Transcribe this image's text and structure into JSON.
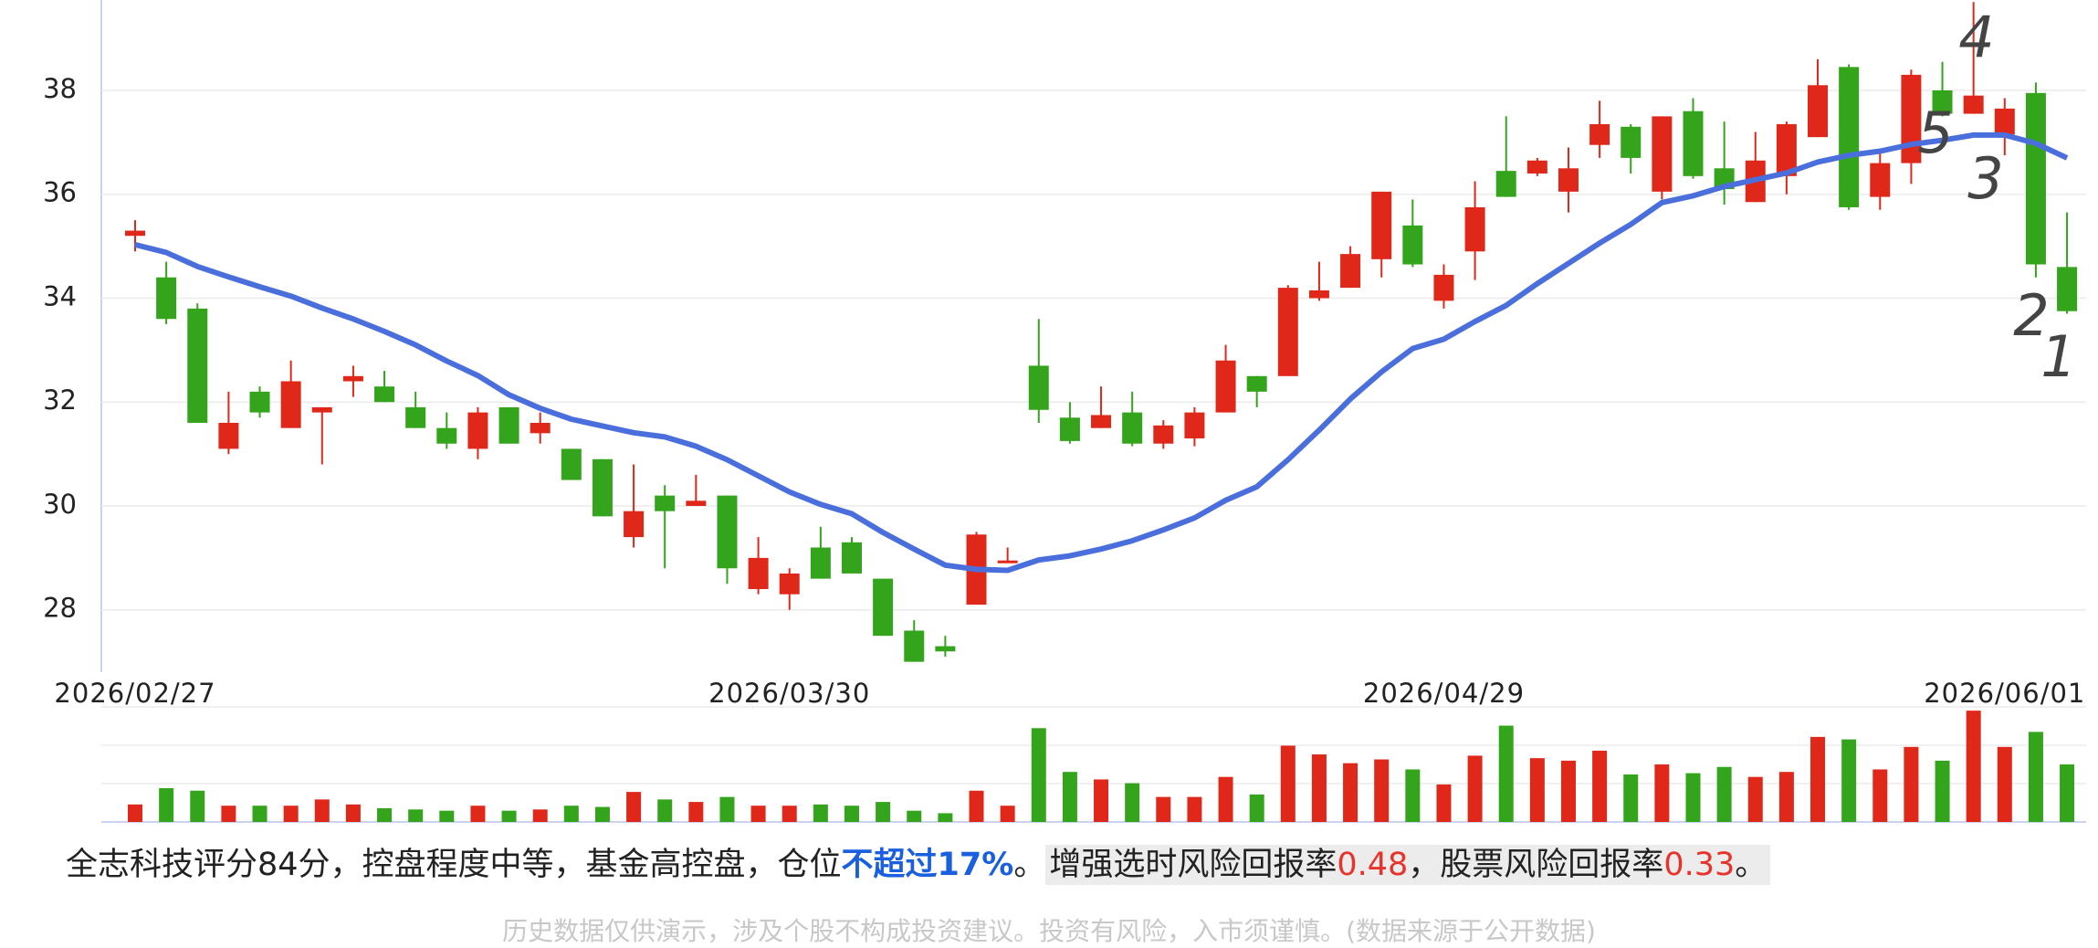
{
  "chart_data": {
    "type": "candlestick",
    "categories": [
      "2026/02/27",
      null,
      null,
      null,
      null,
      null,
      null,
      null,
      null,
      null,
      null,
      null,
      null,
      null,
      null,
      null,
      null,
      null,
      null,
      null,
      null,
      "2026/03/30",
      null,
      null,
      null,
      null,
      null,
      null,
      null,
      null,
      null,
      null,
      null,
      null,
      null,
      null,
      null,
      null,
      null,
      null,
      null,
      null,
      "2026/04/29",
      null,
      null,
      null,
      null,
      null,
      null,
      null,
      null,
      null,
      null,
      null,
      null,
      null,
      null,
      null,
      null,
      null,
      "2026/06/01",
      null,
      null
    ],
    "open": [
      35.2,
      34.4,
      33.8,
      31.1,
      32.2,
      31.5,
      31.8,
      32.4,
      32.3,
      31.9,
      31.5,
      31.1,
      31.9,
      31.4,
      31.1,
      30.9,
      29.4,
      30.2,
      30.0,
      30.2,
      28.4,
      28.3,
      29.2,
      29.3,
      28.6,
      27.6,
      27.3,
      28.1,
      28.9,
      32.7,
      31.7,
      31.5,
      31.8,
      31.2,
      31.3,
      31.8,
      32.5,
      32.5,
      34.0,
      34.2,
      34.75,
      35.4,
      33.95,
      34.9,
      36.45,
      36.4,
      36.05,
      36.95,
      37.3,
      36.05,
      37.6,
      36.5,
      35.85,
      36.35,
      37.1,
      38.45,
      35.95,
      36.6,
      38.0,
      37.55,
      37.15,
      37.95,
      34.6
    ],
    "close": [
      35.3,
      33.6,
      31.6,
      31.6,
      31.8,
      32.4,
      31.9,
      32.5,
      32.0,
      31.5,
      31.2,
      31.8,
      31.2,
      31.6,
      30.5,
      29.8,
      29.9,
      29.9,
      30.1,
      28.8,
      29.0,
      28.7,
      28.6,
      28.7,
      27.5,
      27.0,
      27.2,
      29.45,
      28.95,
      31.85,
      31.25,
      31.75,
      31.2,
      31.55,
      31.8,
      32.8,
      32.2,
      34.2,
      34.15,
      34.85,
      36.05,
      34.65,
      34.45,
      35.75,
      35.95,
      36.65,
      36.5,
      37.35,
      36.7,
      37.5,
      36.35,
      36.1,
      36.65,
      37.35,
      38.1,
      35.75,
      36.6,
      38.3,
      37.55,
      37.9,
      37.65,
      34.65,
      33.75
    ],
    "high": [
      35.5,
      34.7,
      33.9,
      32.2,
      32.3,
      32.8,
      31.9,
      32.7,
      32.6,
      32.2,
      31.8,
      31.9,
      31.9,
      31.8,
      31.1,
      30.9,
      30.8,
      30.4,
      30.6,
      30.2,
      29.4,
      28.8,
      29.6,
      29.4,
      28.6,
      27.8,
      27.5,
      29.5,
      29.2,
      33.6,
      32.0,
      32.3,
      32.2,
      31.65,
      31.9,
      33.1,
      32.5,
      34.25,
      34.7,
      35.0,
      36.05,
      35.9,
      34.65,
      36.25,
      37.5,
      36.7,
      36.9,
      37.8,
      37.35,
      37.5,
      37.85,
      37.4,
      37.2,
      37.4,
      38.6,
      38.5,
      36.85,
      38.4,
      38.55,
      39.7,
      37.85,
      38.15,
      35.65
    ],
    "low": [
      34.9,
      33.5,
      31.6,
      31.0,
      31.7,
      31.5,
      30.8,
      32.1,
      32.0,
      31.5,
      31.1,
      30.9,
      31.2,
      31.2,
      30.5,
      29.8,
      29.2,
      28.8,
      30.0,
      28.5,
      28.3,
      28.0,
      28.6,
      28.7,
      27.5,
      27.0,
      27.1,
      28.1,
      28.9,
      31.6,
      31.2,
      31.5,
      31.15,
      31.1,
      31.15,
      31.8,
      31.9,
      32.5,
      33.95,
      34.2,
      34.4,
      34.6,
      33.8,
      34.35,
      35.95,
      36.35,
      35.65,
      36.7,
      36.4,
      35.9,
      36.3,
      35.8,
      35.85,
      36.0,
      37.1,
      35.7,
      35.7,
      36.2,
      37.5,
      37.55,
      36.75,
      34.4,
      33.7
    ],
    "up_color": "#e0281a",
    "down_color": "#33a41b",
    "ma": {
      "color": "#4a6fdc",
      "values": [
        35.03,
        34.88,
        34.61,
        34.41,
        34.22,
        34.04,
        33.81,
        33.6,
        33.36,
        33.1,
        32.79,
        32.51,
        32.14,
        31.88,
        31.67,
        31.54,
        31.41,
        31.33,
        31.15,
        30.89,
        30.58,
        30.27,
        30.03,
        29.85,
        29.49,
        29.17,
        28.86,
        28.78,
        28.76,
        28.96,
        29.04,
        29.17,
        29.33,
        29.54,
        29.77,
        30.11,
        30.37,
        30.89,
        31.46,
        32.06,
        32.58,
        33.03,
        33.21,
        33.55,
        33.86,
        34.28,
        34.67,
        35.06,
        35.42,
        35.84,
        35.97,
        36.15,
        36.28,
        36.41,
        36.62,
        36.75,
        36.83,
        36.96,
        37.04,
        37.14,
        37.14,
        36.98,
        36.7
      ]
    },
    "volume": {
      "values": [
        14,
        27,
        25,
        13,
        13,
        13,
        18,
        14,
        11,
        10,
        9,
        13,
        9,
        10,
        13,
        12,
        24,
        18,
        16,
        20,
        13,
        13,
        14,
        13,
        16,
        9,
        7,
        25,
        13,
        75,
        40,
        34,
        31,
        20,
        20,
        36,
        22,
        61,
        54,
        47,
        50,
        42,
        30,
        53,
        77,
        51,
        49,
        57,
        38,
        46,
        39,
        44,
        36,
        40,
        68,
        66,
        42,
        60,
        49,
        89,
        60,
        72,
        46
      ],
      "ylim": [
        0,
        92
      ]
    },
    "ylim": [
      26.8,
      39.74
    ],
    "yticks": [
      28,
      30,
      32,
      34,
      36,
      38
    ],
    "grid": true,
    "annotations": [
      "4",
      "5",
      "3",
      "2",
      "1"
    ]
  },
  "summary": {
    "part1": "全志科技评分84分，控盘程度中等，基金高控盘，仓位",
    "highlight": "不超过17%",
    "end1": "。",
    "part2": "增强选时风险回报率",
    "value1": "0.48",
    "part3": "，股票风险回报率",
    "value2": "0.33",
    "end2": "。"
  },
  "footnote": "历史数据仅供演示，涉及个股不构成投资建议。投资有风险，入市须谨慎。(数据来源于公开数据)"
}
